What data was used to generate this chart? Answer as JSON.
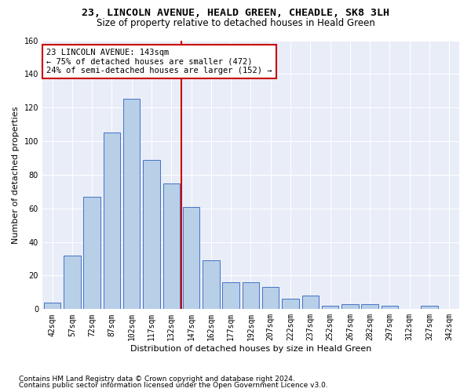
{
  "title_line1": "23, LINCOLN AVENUE, HEALD GREEN, CHEADLE, SK8 3LH",
  "title_line2": "Size of property relative to detached houses in Heald Green",
  "xlabel": "Distribution of detached houses by size in Heald Green",
  "ylabel": "Number of detached properties",
  "footnote1": "Contains HM Land Registry data © Crown copyright and database right 2024.",
  "footnote2": "Contains public sector information licensed under the Open Government Licence v3.0.",
  "categories": [
    "42sqm",
    "57sqm",
    "72sqm",
    "87sqm",
    "102sqm",
    "117sqm",
    "132sqm",
    "147sqm",
    "162sqm",
    "177sqm",
    "192sqm",
    "207sqm",
    "222sqm",
    "237sqm",
    "252sqm",
    "267sqm",
    "282sqm",
    "297sqm",
    "312sqm",
    "327sqm",
    "342sqm"
  ],
  "values": [
    4,
    32,
    67,
    105,
    125,
    89,
    75,
    61,
    29,
    16,
    16,
    13,
    6,
    8,
    2,
    3,
    3,
    2,
    0,
    2,
    0
  ],
  "bar_color": "#b8cfe8",
  "bar_edge_color": "#4472c4",
  "vline_x_index": 6.5,
  "vline_color": "#cc0000",
  "annotation_line1": "23 LINCOLN AVENUE: 143sqm",
  "annotation_line2": "← 75% of detached houses are smaller (472)",
  "annotation_line3": "24% of semi-detached houses are larger (152) →",
  "annotation_box_color": "#cc0000",
  "ylim": [
    0,
    160
  ],
  "yticks": [
    0,
    20,
    40,
    60,
    80,
    100,
    120,
    140,
    160
  ],
  "background_color": "#e8edf8",
  "grid_color": "#ffffff",
  "title1_fontsize": 9.5,
  "title2_fontsize": 8.5,
  "xlabel_fontsize": 8,
  "ylabel_fontsize": 8,
  "tick_fontsize": 7,
  "annotation_fontsize": 7.5,
  "footnote_fontsize": 6.5
}
